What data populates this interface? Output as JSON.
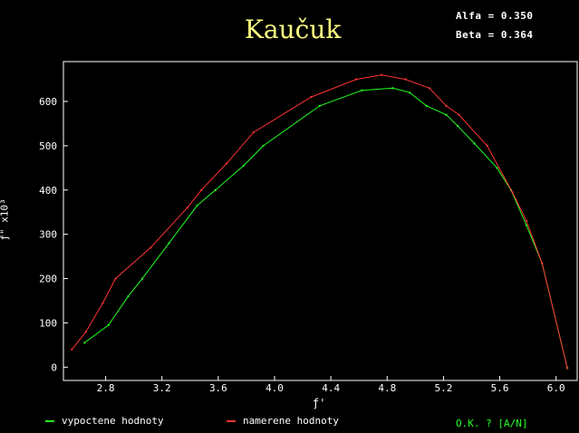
{
  "header": {
    "title": "Kaučuk",
    "alfa": "Alfa = 0.350",
    "beta": "Beta = 0.364"
  },
  "prompt": "O.K. ? [A/N]",
  "colors": {
    "background": "#000000",
    "axis": "#ffffff",
    "calc": "#22ff22",
    "meas": "#ff3333",
    "title": "#ffff80"
  },
  "chart_data": {
    "type": "line",
    "title": "Kaučuk",
    "xlabel": "ƒ'",
    "ylabel": "ƒ\" x10³",
    "xlim": [
      2.5,
      6.15
    ],
    "ylim": [
      -30,
      690
    ],
    "xticks": [
      "2.8",
      "3.2",
      "3.6",
      "4.0",
      "4.4",
      "4.8",
      "5.2",
      "5.6",
      "6.0"
    ],
    "yticks": [
      "0",
      "100",
      "200",
      "300",
      "400",
      "500",
      "600"
    ],
    "grid": false,
    "legend": "bottom",
    "series": [
      {
        "name": "vypoctene hodnoty",
        "color": "#22ff22",
        "x": [
          2.65,
          2.82,
          2.96,
          3.06,
          3.25,
          3.45,
          3.58,
          3.78,
          3.92,
          4.32,
          4.62,
          4.84,
          4.96,
          5.08,
          5.22,
          5.3,
          5.42,
          5.58,
          5.68,
          5.79,
          5.9,
          6.08
        ],
        "y": [
          55,
          95,
          160,
          200,
          280,
          365,
          400,
          455,
          500,
          590,
          625,
          630,
          620,
          590,
          570,
          545,
          505,
          450,
          400,
          320,
          235,
          -2
        ]
      },
      {
        "name": "namerene hodnoty",
        "color": "#ff3333",
        "x": [
          2.56,
          2.66,
          2.78,
          2.87,
          3.12,
          3.38,
          3.48,
          3.66,
          3.85,
          4.26,
          4.58,
          4.76,
          4.93,
          5.1,
          5.22,
          5.31,
          5.51,
          5.69,
          5.79,
          5.9,
          6.08
        ],
        "y": [
          40,
          80,
          145,
          200,
          270,
          360,
          400,
          460,
          530,
          610,
          650,
          660,
          650,
          630,
          590,
          570,
          500,
          395,
          330,
          235,
          -2
        ]
      }
    ]
  }
}
